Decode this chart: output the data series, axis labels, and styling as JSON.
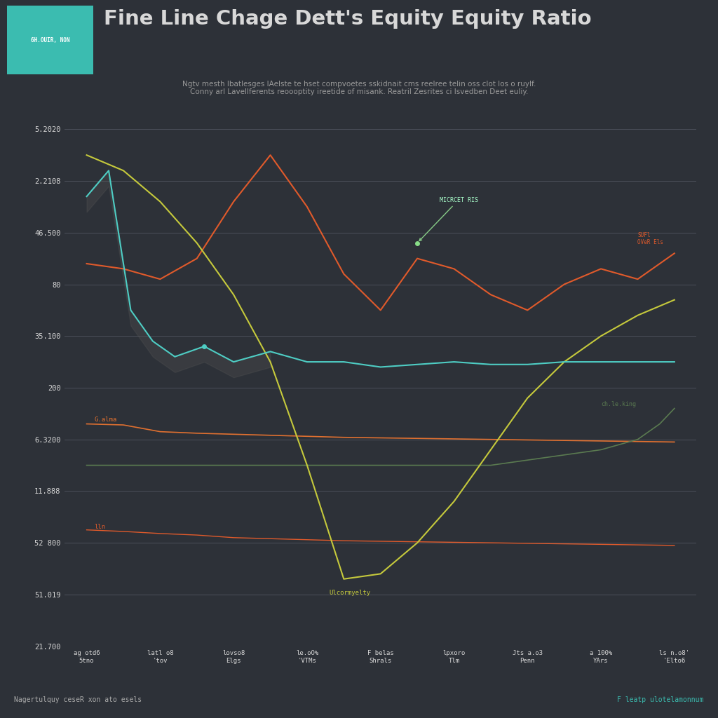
{
  "title": "Fine Line Chage Dett's Equity Equity Ratio",
  "subtitle": "Ngtv mesth lbatlesges lAelste te hset compvoetes sskidnait cms reelree telin oss clot los o ruylf.\nConny arl Lavellferents reoooptity ireetide of misank. Reatril Zesrites ci lsvedben Deet euliy.",
  "background_color": "#2d3138",
  "grid_color": "#606470",
  "text_color": "#d8d8d8",
  "categories": [
    "ag otd6\n5tno",
    "latl o8\n'tov",
    "lovso8\nElgs",
    "le.oO%\n'VTMs",
    "F belas\nShrals",
    "lpxoro\nTlm",
    "Jts a.o3\nPenn",
    "a 100%\nYArs",
    "ls n.o8'\n'Elto6"
  ],
  "y_labels_top_to_bottom": [
    "5.2020",
    "2.2108",
    "46.500",
    "80",
    "35.100",
    "200",
    "6.3200",
    "11.888",
    "52 800",
    "51.019",
    "21.700"
  ],
  "logo_bg": "#3bbcb0",
  "logo_text": "6H.OUIR, NON",
  "bottom_left_text": "Nagertulquy ceseR xon ato esels",
  "bottom_right_text": "F leatp ulotelamonnum"
}
